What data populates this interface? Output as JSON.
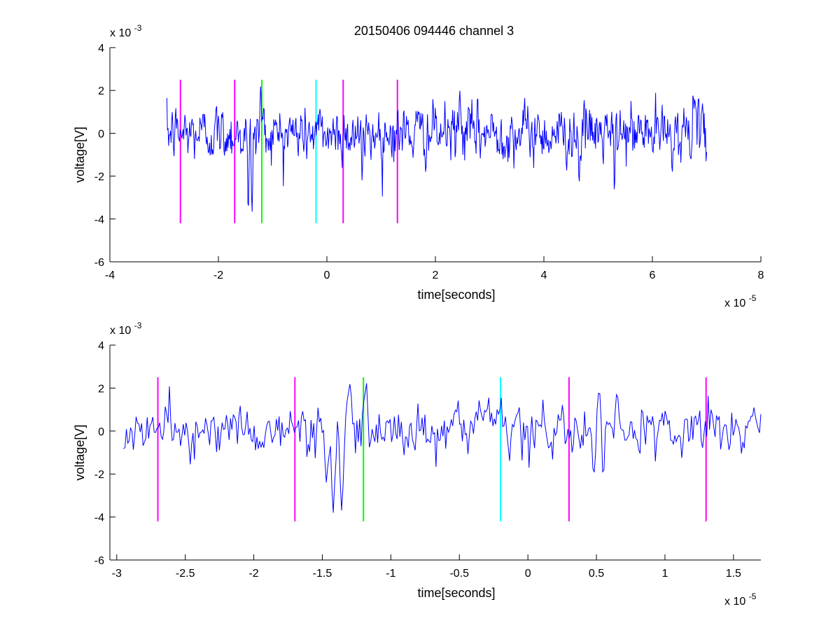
{
  "figure": {
    "title": "20150406 094446 channel 3"
  },
  "chart_data": [
    {
      "type": "line",
      "xlabel": "time[seconds]",
      "ylabel": "voltage[V]",
      "x_exponent_label": "x 10",
      "x_exponent": "-5",
      "y_exponent_label": "x 10",
      "y_exponent": "-3",
      "xlim": [
        -4,
        8
      ],
      "ylim": [
        -6,
        4
      ],
      "x_ticks": [
        "-4",
        "-2",
        "0",
        "2",
        "4",
        "6",
        "8"
      ],
      "x_tick_values": [
        -4,
        -2,
        0,
        2,
        4,
        6,
        8
      ],
      "y_ticks": [
        "-6",
        "-4",
        "-2",
        "0",
        "2",
        "4"
      ],
      "y_tick_values": [
        -6,
        -4,
        -2,
        0,
        2,
        4
      ],
      "grid": false,
      "signal": {
        "color": "#0000ff",
        "x_start": -2.95,
        "x_end": 7.0,
        "n_points": 900,
        "baseline": 0,
        "noise_std": 0.7,
        "dips": [
          {
            "x": -1.45,
            "y": -3.8
          },
          {
            "x": -1.38,
            "y": -3.7
          },
          {
            "x": 5.3,
            "y": -2.8
          },
          {
            "x": 4.65,
            "y": -2.3
          },
          {
            "x": 0.65,
            "y": -2.3
          }
        ],
        "peaks": [
          {
            "x": -1.22,
            "y": 2.3
          },
          {
            "x": 2.45,
            "y": 2.0
          },
          {
            "x": 6.75,
            "y": 2.0
          }
        ]
      },
      "markers": [
        {
          "x": -2.7,
          "color": "#ff00ff",
          "y_from": -4.2,
          "y_to": 2.5
        },
        {
          "x": -1.7,
          "color": "#ff00ff",
          "y_from": -4.2,
          "y_to": 2.5
        },
        {
          "x": -1.2,
          "color": "#00ff00",
          "y_from": -4.2,
          "y_to": 2.5
        },
        {
          "x": -0.2,
          "color": "#00ffff",
          "y_from": -4.2,
          "y_to": 2.5
        },
        {
          "x": 0.3,
          "color": "#ff00ff",
          "y_from": -4.2,
          "y_to": 2.5
        },
        {
          "x": 1.3,
          "color": "#ff00ff",
          "y_from": -4.2,
          "y_to": 2.5
        }
      ]
    },
    {
      "type": "line",
      "xlabel": "time[seconds]",
      "ylabel": "voltage[V]",
      "x_exponent_label": "x 10",
      "x_exponent": "-5",
      "y_exponent_label": "x 10",
      "y_exponent": "-3",
      "xlim": [
        -3.05,
        1.7
      ],
      "ylim": [
        -6,
        4
      ],
      "x_ticks": [
        "-3",
        "-2.5",
        "-2",
        "-1.5",
        "-1",
        "-0.5",
        "0",
        "0.5",
        "1",
        "1.5"
      ],
      "x_tick_values": [
        -3,
        -2.5,
        -2,
        -1.5,
        -1,
        -0.5,
        0,
        0.5,
        1,
        1.5
      ],
      "y_ticks": [
        "-6",
        "-4",
        "-2",
        "0",
        "2",
        "4"
      ],
      "y_tick_values": [
        -6,
        -4,
        -2,
        0,
        2,
        4
      ],
      "grid": false,
      "signal": {
        "color": "#0000ff",
        "x_start": -2.95,
        "x_end": 1.7,
        "n_points": 460,
        "baseline": 0,
        "noise_std": 0.65,
        "dips": [
          {
            "x": -1.42,
            "y": -3.8
          },
          {
            "x": -1.36,
            "y": -3.7
          },
          {
            "x": -1.47,
            "y": -2.4
          },
          {
            "x": 0.55,
            "y": -2.3
          },
          {
            "x": 0.48,
            "y": -2.1
          }
        ],
        "peaks": [
          {
            "x": -1.18,
            "y": 2.3
          },
          {
            "x": -1.3,
            "y": 2.2
          },
          {
            "x": 0.52,
            "y": 1.9
          },
          {
            "x": 0.65,
            "y": 1.8
          }
        ]
      },
      "markers": [
        {
          "x": -2.7,
          "color": "#ff00ff",
          "y_from": -4.2,
          "y_to": 2.5
        },
        {
          "x": -1.7,
          "color": "#ff00ff",
          "y_from": -4.2,
          "y_to": 2.5
        },
        {
          "x": -1.2,
          "color": "#00ff00",
          "y_from": -4.2,
          "y_to": 2.5
        },
        {
          "x": -0.2,
          "color": "#00ffff",
          "y_from": -4.2,
          "y_to": 2.5
        },
        {
          "x": 0.3,
          "color": "#ff00ff",
          "y_from": -4.2,
          "y_to": 2.5
        },
        {
          "x": 1.3,
          "color": "#ff00ff",
          "y_from": -4.2,
          "y_to": 2.5
        }
      ]
    }
  ]
}
